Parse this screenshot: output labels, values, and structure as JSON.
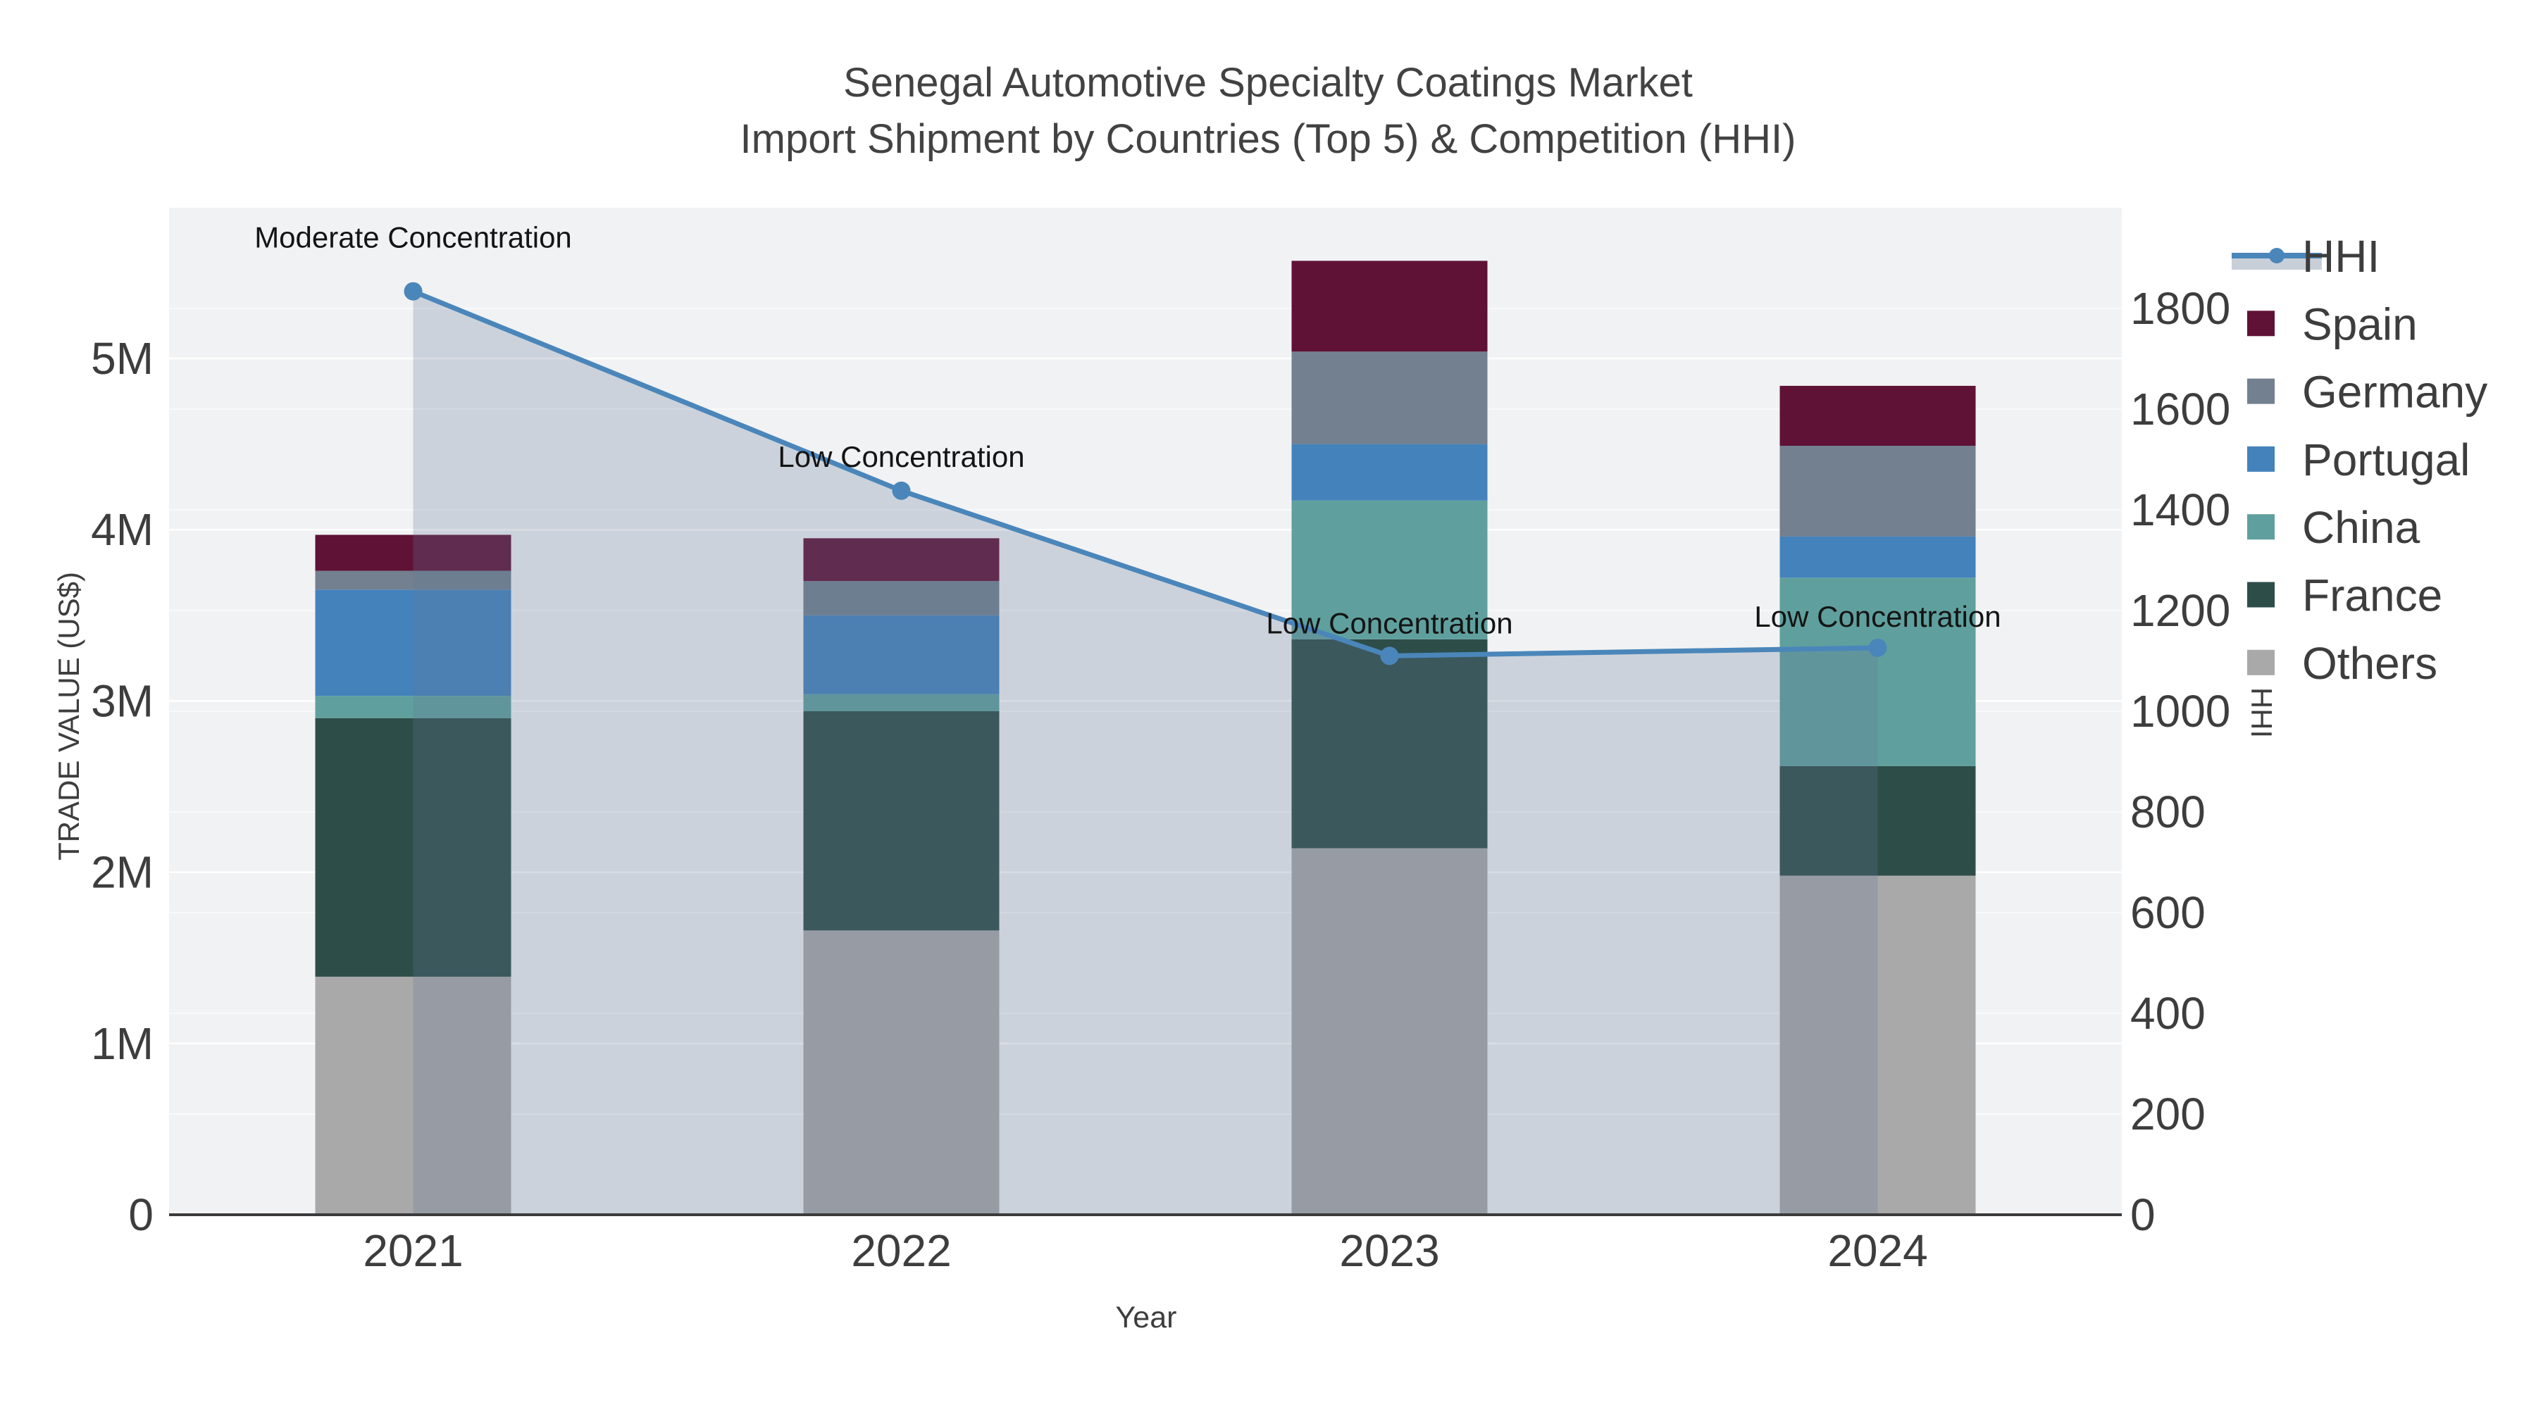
{
  "title": {
    "line1": "Senegal Automotive Specialty Coatings Market",
    "line2": "Import Shipment by Countries (Top 5) & Competition (HHI)"
  },
  "colors": {
    "background_plot": "#f1f2f3",
    "gridline": "#ffffff",
    "axis_line": "#3b3b3b",
    "tick_text": "#3d3d3d",
    "title_text": "#424242",
    "annotation_text": "#141414",
    "hhi_line": "#4a86ba",
    "hhi_fill": "rgba(100,118,150,0.26)",
    "hhi_legend_band": "#c9cfd9",
    "spain": "#5f1236",
    "germany": "#72808f",
    "portugal": "#4482bc",
    "china": "#5fa09e",
    "france": "#2d4d49",
    "others": "#a9a9a9"
  },
  "chart_data": {
    "type": "combo-stacked-bar-line",
    "x": [
      "2021",
      "2022",
      "2023",
      "2024"
    ],
    "bar_value_unit": "US$ millions",
    "series": [
      {
        "name": "Others",
        "color_key": "others",
        "values": [
          1.39,
          1.66,
          2.14,
          1.98
        ]
      },
      {
        "name": "France",
        "color_key": "france",
        "values": [
          1.51,
          1.28,
          1.22,
          0.64
        ]
      },
      {
        "name": "China",
        "color_key": "china",
        "values": [
          0.13,
          0.1,
          0.81,
          1.1
        ]
      },
      {
        "name": "Portugal",
        "color_key": "portugal",
        "values": [
          0.62,
          0.46,
          0.33,
          0.24
        ]
      },
      {
        "name": "Germany",
        "color_key": "germany",
        "values": [
          0.11,
          0.2,
          0.54,
          0.53
        ]
      },
      {
        "name": "Spain",
        "color_key": "spain",
        "values": [
          0.21,
          0.25,
          0.53,
          0.35
        ]
      }
    ],
    "line_series": {
      "name": "HHI",
      "axis": "right",
      "values": [
        1834,
        1438,
        1110,
        1126
      ],
      "area_fill": true
    },
    "annotations": [
      {
        "text": "Moderate Concentration",
        "x_index": 0
      },
      {
        "text": "Low Concentration",
        "x_index": 1
      },
      {
        "text": "Low Concentration",
        "x_index": 2
      },
      {
        "text": "Low Concentration",
        "x_index": 3
      }
    ],
    "axes": {
      "left": {
        "title": "TRADE VALUE (US$)",
        "tick_labels": [
          "0",
          "1M",
          "2M",
          "3M",
          "4M",
          "5M"
        ],
        "tick_values": [
          0,
          1,
          2,
          3,
          4,
          5
        ]
      },
      "right": {
        "title": "HHI",
        "tick_labels": [
          "0",
          "200",
          "400",
          "600",
          "800",
          "1000",
          "1200",
          "1400",
          "1600",
          "1800"
        ],
        "tick_values": [
          0,
          200,
          400,
          600,
          800,
          1000,
          1200,
          1400,
          1600,
          1800
        ],
        "range": [
          0,
          2000
        ]
      },
      "x": {
        "title": "Year"
      }
    },
    "legend": [
      {
        "label": "HHI",
        "type": "line"
      },
      {
        "label": "Spain",
        "type": "swatch",
        "color_key": "spain"
      },
      {
        "label": "Germany",
        "type": "swatch",
        "color_key": "germany"
      },
      {
        "label": "Portugal",
        "type": "swatch",
        "color_key": "portugal"
      },
      {
        "label": "China",
        "type": "swatch",
        "color_key": "china"
      },
      {
        "label": "France",
        "type": "swatch",
        "color_key": "france"
      },
      {
        "label": "Others",
        "type": "swatch",
        "color_key": "others"
      }
    ]
  }
}
